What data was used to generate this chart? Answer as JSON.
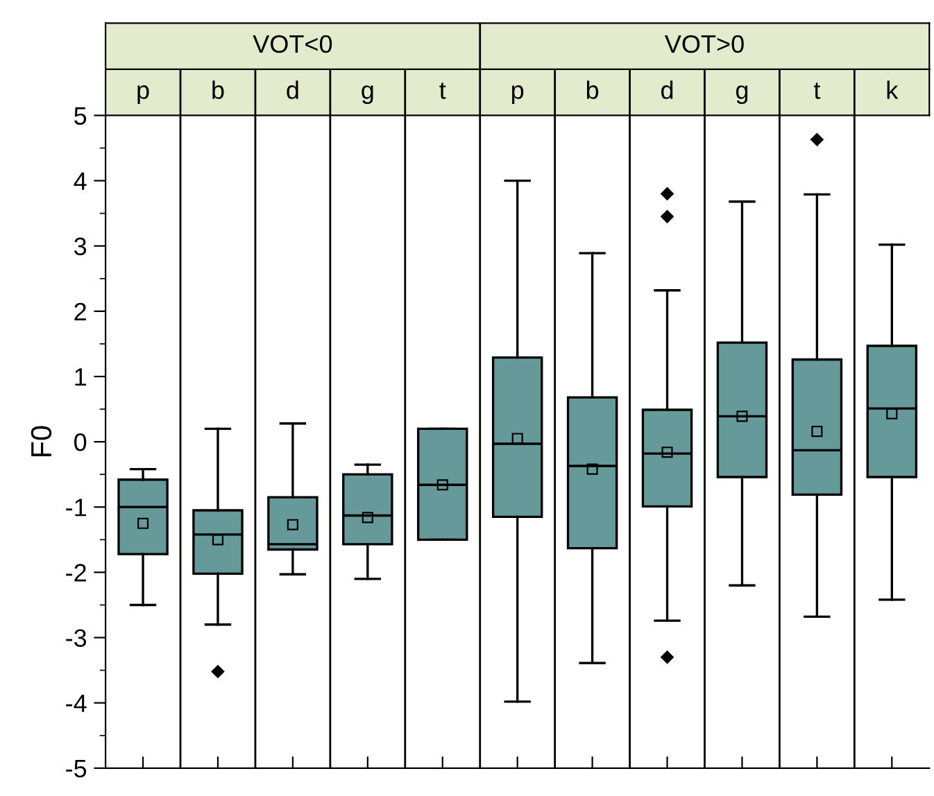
{
  "chart_data": {
    "type": "box",
    "ylabel": "F0",
    "categories": [
      "p",
      "b",
      "d",
      "g",
      "t",
      "p",
      "b",
      "d",
      "g",
      "t",
      "k"
    ],
    "color": "#669999",
    "boxes": [
      {
        "low": -2.5,
        "q1": -1.72,
        "median": -1.0,
        "q3": -0.58,
        "high": -0.42,
        "mean": -1.25
      },
      {
        "low": -2.8,
        "q1": -2.02,
        "median": -1.42,
        "q3": -1.05,
        "high": 0.2,
        "mean": -1.5,
        "outliers": [
          -3.52
        ]
      },
      {
        "low": -2.03,
        "q1": -1.65,
        "median": -1.57,
        "q3": -0.85,
        "high": 0.28,
        "mean": -1.27
      },
      {
        "low": -2.1,
        "q1": -1.57,
        "median": -1.13,
        "q3": -0.5,
        "high": -0.35,
        "mean": -1.16
      },
      {
        "low": -1.5,
        "q1": -1.5,
        "median": -0.66,
        "q3": 0.2,
        "high": 0.2,
        "mean": -0.66
      },
      {
        "low": -3.98,
        "q1": -1.15,
        "median": -0.03,
        "q3": 1.29,
        "high": 4.0,
        "mean": 0.05
      },
      {
        "low": -3.39,
        "q1": -1.63,
        "median": -0.37,
        "q3": 0.68,
        "high": 2.89,
        "mean": -0.42
      },
      {
        "low": -2.74,
        "q1": -0.99,
        "median": -0.18,
        "q3": 0.49,
        "high": 2.32,
        "mean": -0.16,
        "outliers": [
          3.8,
          3.45,
          -3.3
        ]
      },
      {
        "low": -2.2,
        "q1": -0.54,
        "median": 0.39,
        "q3": 1.52,
        "high": 3.68,
        "mean": 0.39
      },
      {
        "low": -2.68,
        "q1": -0.81,
        "median": -0.13,
        "q3": 1.26,
        "high": 3.79,
        "mean": 0.16,
        "outliers": [
          4.63
        ]
      },
      {
        "low": -2.42,
        "q1": -0.54,
        "median": 0.51,
        "q3": 1.47,
        "high": 3.02,
        "mean": 0.43
      }
    ],
    "annotations": [
      "VOT<0",
      "VOT>0"
    ],
    "ylim": [
      -5,
      5
    ],
    "yticks": [
      -5,
      -4,
      -3,
      -2,
      -1,
      0,
      1,
      2,
      3,
      4,
      5
    ]
  }
}
